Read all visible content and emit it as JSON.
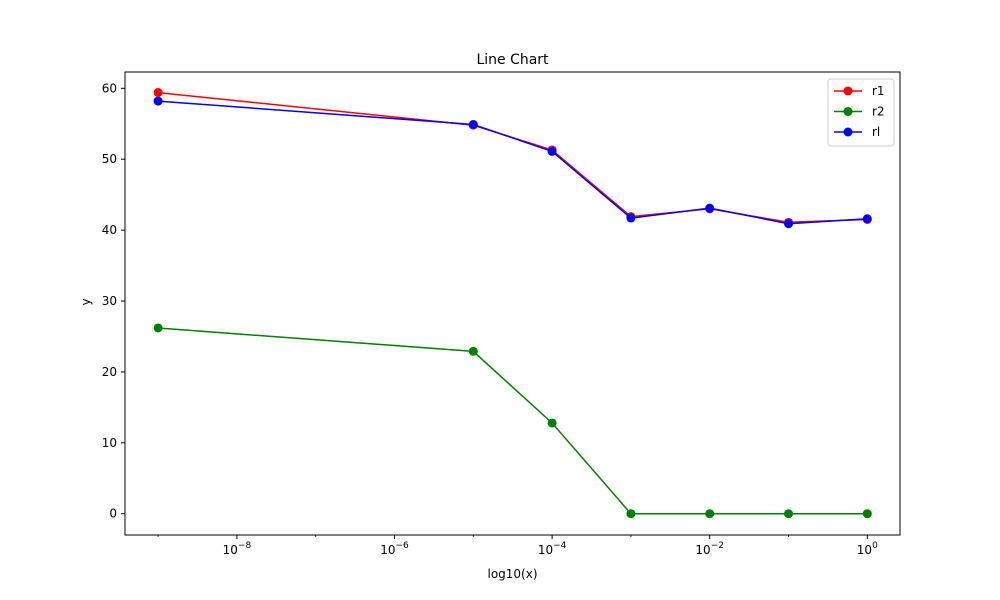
{
  "chart_data": {
    "type": "line",
    "title": "Line Chart",
    "xlabel": "log10(x)",
    "ylabel": "y",
    "x_scale": "log",
    "x": [
      1e-09,
      1e-05,
      0.0001,
      0.001,
      0.01,
      0.1,
      1
    ],
    "xlim": [
      3.8e-10,
      2.6
    ],
    "ylim": [
      -3,
      62.3
    ],
    "y_ticks": [
      0,
      10,
      20,
      30,
      40,
      50,
      60
    ],
    "y_tick_labels": [
      "0",
      "10",
      "20",
      "30",
      "40",
      "50",
      "60"
    ],
    "x_ticks": [
      1e-08,
      1e-06,
      0.0001,
      0.01,
      1
    ],
    "x_tick_labels": [
      {
        "base": "10",
        "exp": "−8"
      },
      {
        "base": "10",
        "exp": "−6"
      },
      {
        "base": "10",
        "exp": "−4"
      },
      {
        "base": "10",
        "exp": "−2"
      },
      {
        "base": "10",
        "exp": "0"
      }
    ],
    "grid": false,
    "legend_position": "top-right",
    "series": [
      {
        "name": "r1",
        "color": "#ff0000",
        "values": [
          59.4,
          54.8,
          51.3,
          41.9,
          43.0,
          41.1,
          41.5
        ]
      },
      {
        "name": "r2",
        "color": "#008000",
        "values": [
          26.2,
          22.9,
          12.8,
          0.0,
          0.0,
          0.0,
          0.0
        ]
      },
      {
        "name": "rl",
        "color": "#0000ff",
        "values": [
          58.2,
          54.9,
          51.1,
          41.7,
          43.1,
          40.9,
          41.6
        ]
      }
    ]
  }
}
